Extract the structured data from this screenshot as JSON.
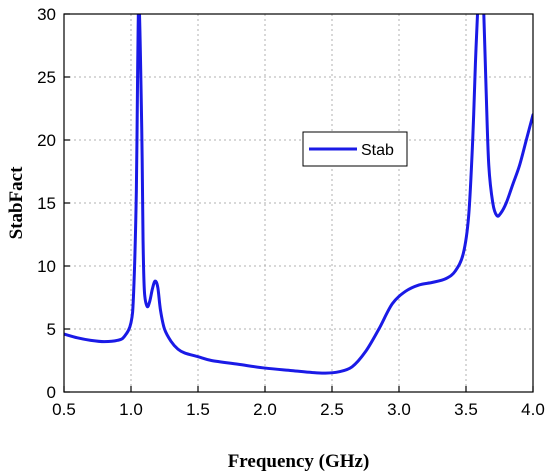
{
  "chart_data": {
    "type": "line",
    "xlabel": "Frequency (GHz)",
    "ylabel": "StabFact",
    "xlim": [
      0.5,
      4.0
    ],
    "ylim": [
      0,
      30
    ],
    "xticks": [
      "0.5",
      "1.0",
      "1.5",
      "2.0",
      "2.5",
      "3.0",
      "3.5",
      "4.0"
    ],
    "yticks": [
      "0",
      "5",
      "10",
      "15",
      "20",
      "25",
      "30"
    ],
    "grid": true,
    "legend_position": "center-right",
    "series": [
      {
        "name": "Stab",
        "color": "#1a1ae6",
        "x": [
          0.5,
          0.6,
          0.7,
          0.8,
          0.9,
          0.95,
          1.0,
          1.02,
          1.04,
          1.05,
          1.06,
          1.08,
          1.09,
          1.1,
          1.12,
          1.14,
          1.16,
          1.18,
          1.2,
          1.22,
          1.25,
          1.3,
          1.35,
          1.4,
          1.5,
          1.6,
          1.8,
          2.0,
          2.2,
          2.35,
          2.45,
          2.55,
          2.65,
          2.75,
          2.85,
          2.95,
          3.05,
          3.15,
          3.25,
          3.35,
          3.42,
          3.48,
          3.52,
          3.55,
          3.57,
          3.59,
          3.6,
          3.62,
          3.63,
          3.65,
          3.67,
          3.7,
          3.73,
          3.76,
          3.8,
          3.85,
          3.9,
          3.95,
          4.0
        ],
        "values": [
          4.6,
          4.3,
          4.1,
          4.0,
          4.1,
          4.4,
          5.5,
          8.0,
          16.0,
          26.0,
          31.0,
          21.0,
          12.0,
          8.0,
          6.8,
          7.2,
          8.2,
          8.8,
          8.3,
          6.5,
          5.0,
          4.0,
          3.4,
          3.1,
          2.8,
          2.5,
          2.2,
          1.9,
          1.7,
          1.55,
          1.5,
          1.6,
          2.0,
          3.2,
          5.0,
          7.0,
          8.0,
          8.5,
          8.7,
          9.0,
          9.6,
          11.0,
          14.0,
          20.0,
          26.0,
          31.0,
          32.0,
          32.0,
          31.0,
          24.0,
          18.0,
          15.0,
          14.0,
          14.2,
          15.0,
          16.5,
          18.0,
          20.0,
          22.0
        ]
      }
    ]
  }
}
